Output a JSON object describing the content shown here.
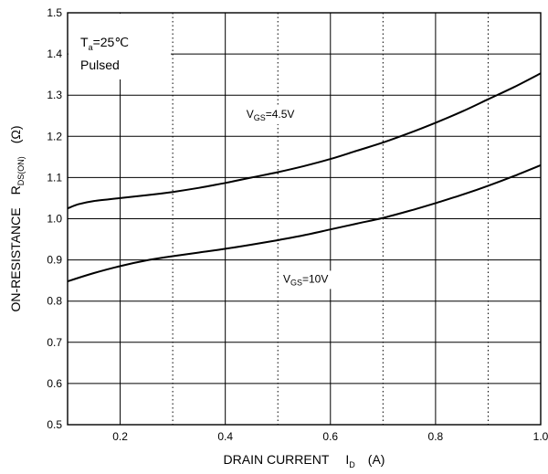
{
  "chart_data": {
    "type": "line",
    "title": "",
    "xlabel": {
      "text": "DRAIN CURRENT",
      "symbol": "I",
      "symbol_sub": "D",
      "unit": "(A)"
    },
    "ylabel": {
      "text": "ON-RESISTANCE",
      "symbol": "R",
      "symbol_sub": "DS(ON)",
      "unit": "(Ω)"
    },
    "xlim": [
      0.1,
      1.0
    ],
    "ylim": [
      0.5,
      1.5
    ],
    "x_ticks": [
      0.2,
      0.4,
      0.6,
      0.8,
      1.0
    ],
    "x_tick_labels": [
      "0.2",
      "0.4",
      "0.6",
      "0.8",
      "1.0"
    ],
    "x_grid_solid": [
      0.2,
      0.4,
      0.6,
      0.8
    ],
    "x_grid_dotted": [
      0.3,
      0.5,
      0.7,
      0.9
    ],
    "y_ticks": [
      0.5,
      0.6,
      0.7,
      0.8,
      0.9,
      1.0,
      1.1,
      1.2,
      1.3,
      1.4,
      1.5
    ],
    "y_tick_labels": [
      "0.5",
      "0.6",
      "0.7",
      "0.8",
      "0.9",
      "1.0",
      "1.1",
      "1.2",
      "1.3",
      "1.4",
      "1.5"
    ],
    "condition": {
      "temp_symbol": "T",
      "temp_sub": "a",
      "temp_value": "=25℃",
      "mode": "Pulsed"
    },
    "series": [
      {
        "label_symbol": "V",
        "label_sub": "GS",
        "label_value": "=4.5V",
        "x": [
          0.1,
          0.12,
          0.15,
          0.2,
          0.25,
          0.3,
          0.35,
          0.4,
          0.45,
          0.5,
          0.55,
          0.6,
          0.65,
          0.7,
          0.75,
          0.8,
          0.85,
          0.9,
          0.95,
          1.0
        ],
        "y": [
          1.025,
          1.035,
          1.043,
          1.05,
          1.057,
          1.065,
          1.075,
          1.087,
          1.1,
          1.113,
          1.128,
          1.145,
          1.165,
          1.185,
          1.208,
          1.233,
          1.26,
          1.29,
          1.32,
          1.353
        ]
      },
      {
        "label_symbol": "V",
        "label_sub": "GS",
        "label_value": "=10V",
        "x": [
          0.1,
          0.15,
          0.2,
          0.25,
          0.3,
          0.35,
          0.4,
          0.45,
          0.5,
          0.55,
          0.6,
          0.65,
          0.7,
          0.75,
          0.8,
          0.85,
          0.9,
          0.95,
          1.0
        ],
        "y": [
          0.848,
          0.868,
          0.885,
          0.899,
          0.909,
          0.918,
          0.927,
          0.937,
          0.948,
          0.96,
          0.974,
          0.988,
          1.002,
          1.019,
          1.038,
          1.058,
          1.08,
          1.104,
          1.13
        ]
      }
    ]
  }
}
